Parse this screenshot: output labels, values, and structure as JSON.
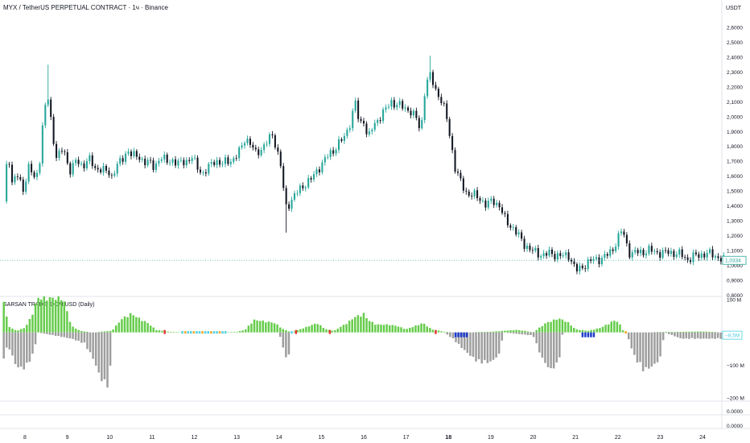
{
  "header": {
    "title": "MYX / TetherUS PERPETUAL CONTRACT · 1ч · Binance",
    "currency": "USDT"
  },
  "indicator": {
    "title": "SARSAN TRADE: DOM USD (Daily)"
  },
  "colors": {
    "up": "#26a69a",
    "down": "#131722",
    "dom_pos": "#66cc4c",
    "dom_neg": "#9e9e9e",
    "dom_orange": "#f6a623",
    "dom_cyan": "#4dd0e1",
    "dom_red": "#e53935",
    "dom_blue": "#1e3ccf"
  },
  "chart_data": [
    {
      "type": "candlestick",
      "title": "MYX / TetherUS PERPETUAL CONTRACT · 1ч · Binance",
      "y_unit": "USDT",
      "ylim": [
        0.78,
        2.66
      ],
      "y_ticks": [
        "2,6000",
        "2,5000",
        "2,4000",
        "2,3000",
        "2,2000",
        "2,1000",
        "2,0000",
        "1,9000",
        "1,8000",
        "1,7000",
        "1,6000",
        "1,5000",
        "1,4000",
        "1,3000",
        "1,2000",
        "1,1000",
        "1,0000",
        "0,9000",
        "0,8000"
      ],
      "last_price_label": "1,0334",
      "last_price": 1.0334,
      "x_ticks": [
        "8",
        "9",
        "10",
        "11",
        "12",
        "13",
        "14",
        "15",
        "16",
        "17",
        "18",
        "19",
        "20",
        "21",
        "22",
        "23",
        "24"
      ],
      "x_ticks_bold": [
        "18"
      ],
      "close_path": [
        [
          7.5,
          1.43
        ],
        [
          7.6,
          1.78
        ],
        [
          7.7,
          1.55
        ],
        [
          7.8,
          1.62
        ],
        [
          7.95,
          1.5
        ],
        [
          8.1,
          1.68
        ],
        [
          8.25,
          1.55
        ],
        [
          8.35,
          1.72
        ],
        [
          8.45,
          2.05
        ],
        [
          8.55,
          2.12
        ],
        [
          8.65,
          1.88
        ],
        [
          8.75,
          1.73
        ],
        [
          8.9,
          1.78
        ],
        [
          9.05,
          1.64
        ],
        [
          9.2,
          1.7
        ],
        [
          9.35,
          1.66
        ],
        [
          9.5,
          1.73
        ],
        [
          9.65,
          1.64
        ],
        [
          9.8,
          1.66
        ],
        [
          9.95,
          1.62
        ],
        [
          10.05,
          1.59
        ],
        [
          10.15,
          1.68
        ],
        [
          10.3,
          1.7
        ],
        [
          10.45,
          1.78
        ],
        [
          10.6,
          1.73
        ],
        [
          10.75,
          1.71
        ],
        [
          10.9,
          1.7
        ],
        [
          11.05,
          1.65
        ],
        [
          11.2,
          1.74
        ],
        [
          11.35,
          1.69
        ],
        [
          11.5,
          1.71
        ],
        [
          11.65,
          1.68
        ],
        [
          11.8,
          1.7
        ],
        [
          11.95,
          1.73
        ],
        [
          12.05,
          1.66
        ],
        [
          12.2,
          1.62
        ],
        [
          12.35,
          1.66
        ],
        [
          12.5,
          1.71
        ],
        [
          12.65,
          1.68
        ],
        [
          12.8,
          1.7
        ],
        [
          12.95,
          1.72
        ],
        [
          13.1,
          1.78
        ],
        [
          13.2,
          1.86
        ],
        [
          13.3,
          1.83
        ],
        [
          13.45,
          1.75
        ],
        [
          13.6,
          1.79
        ],
        [
          13.75,
          1.84
        ],
        [
          13.85,
          1.88
        ],
        [
          13.95,
          1.78
        ],
        [
          14.05,
          1.66
        ],
        [
          14.15,
          1.38
        ],
        [
          14.25,
          1.42
        ],
        [
          14.35,
          1.47
        ],
        [
          14.5,
          1.51
        ],
        [
          14.65,
          1.56
        ],
        [
          14.8,
          1.59
        ],
        [
          14.95,
          1.66
        ],
        [
          15.1,
          1.72
        ],
        [
          15.25,
          1.76
        ],
        [
          15.4,
          1.82
        ],
        [
          15.55,
          1.86
        ],
        [
          15.7,
          1.98
        ],
        [
          15.8,
          2.1
        ],
        [
          15.9,
          1.94
        ],
        [
          16.0,
          1.98
        ],
        [
          16.1,
          1.85
        ],
        [
          16.2,
          1.92
        ],
        [
          16.35,
          1.99
        ],
        [
          16.5,
          2.04
        ],
        [
          16.65,
          2.1
        ],
        [
          16.8,
          2.08
        ],
        [
          16.95,
          2.06
        ],
        [
          17.1,
          2.04
        ],
        [
          17.25,
          1.98
        ],
        [
          17.35,
          1.9
        ],
        [
          17.45,
          2.2
        ],
        [
          17.55,
          2.28
        ],
        [
          17.65,
          2.22
        ],
        [
          17.75,
          2.15
        ],
        [
          17.85,
          2.1
        ],
        [
          17.95,
          2.0
        ],
        [
          18.05,
          1.85
        ],
        [
          18.15,
          1.66
        ],
        [
          18.3,
          1.55
        ],
        [
          18.45,
          1.48
        ],
        [
          18.6,
          1.47
        ],
        [
          18.75,
          1.45
        ],
        [
          18.9,
          1.4
        ],
        [
          19.05,
          1.44
        ],
        [
          19.2,
          1.4
        ],
        [
          19.35,
          1.3
        ],
        [
          19.5,
          1.26
        ],
        [
          19.65,
          1.2
        ],
        [
          19.8,
          1.14
        ],
        [
          19.95,
          1.1
        ],
        [
          20.1,
          1.08
        ],
        [
          20.25,
          1.07
        ],
        [
          20.4,
          1.08
        ],
        [
          20.55,
          1.07
        ],
        [
          20.7,
          1.06
        ],
        [
          20.85,
          1.07
        ],
        [
          20.95,
          1.0
        ],
        [
          21.05,
          0.96
        ],
        [
          21.2,
          1.0
        ],
        [
          21.35,
          1.03
        ],
        [
          21.5,
          1.04
        ],
        [
          21.65,
          1.05
        ],
        [
          21.8,
          1.08
        ],
        [
          21.9,
          1.12
        ],
        [
          22.0,
          1.18
        ],
        [
          22.1,
          1.24
        ],
        [
          22.2,
          1.15
        ],
        [
          22.3,
          1.07
        ],
        [
          22.45,
          1.09
        ],
        [
          22.6,
          1.09
        ],
        [
          22.75,
          1.1
        ],
        [
          22.9,
          1.09
        ],
        [
          23.05,
          1.08
        ],
        [
          23.2,
          1.09
        ],
        [
          23.35,
          1.08
        ],
        [
          23.5,
          1.07
        ],
        [
          23.65,
          1.04
        ],
        [
          23.8,
          1.06
        ],
        [
          23.95,
          1.07
        ],
        [
          24.1,
          1.08
        ],
        [
          24.25,
          1.07
        ],
        [
          24.4,
          1.05
        ],
        [
          24.5,
          1.0334
        ]
      ],
      "wick_extremes": [
        {
          "x": 8.55,
          "high": 2.35
        },
        {
          "x": 17.55,
          "high": 2.41
        },
        {
          "x": 14.15,
          "low": 1.22
        },
        {
          "x": 21.05,
          "low": 0.94
        }
      ]
    },
    {
      "type": "bar",
      "title": "SARSAN TRADE: DOM USD (Daily)",
      "y_unit": "USD",
      "ylim": [
        -210,
        110
      ],
      "y_ticks": [
        "100 M",
        "−100 M",
        "−200 M"
      ],
      "last_value_label": "−8,5M",
      "last_value": -8.5,
      "lower_axis_labels": [
        "0.0000",
        "0.0000"
      ],
      "pos_path": [
        [
          7.5,
          110
        ],
        [
          7.6,
          20
        ],
        [
          7.8,
          5
        ],
        [
          8.0,
          15
        ],
        [
          8.15,
          50
        ],
        [
          8.3,
          110
        ],
        [
          8.55,
          110
        ],
        [
          8.9,
          110
        ],
        [
          9.1,
          20
        ],
        [
          9.3,
          5
        ],
        [
          9.6,
          0
        ],
        [
          10.05,
          5
        ],
        [
          10.3,
          45
        ],
        [
          10.5,
          60
        ],
        [
          10.7,
          45
        ],
        [
          10.9,
          30
        ],
        [
          11.1,
          8
        ],
        [
          11.4,
          2
        ],
        [
          12.0,
          0
        ],
        [
          12.5,
          0
        ],
        [
          13.0,
          2
        ],
        [
          13.2,
          8
        ],
        [
          13.4,
          40
        ],
        [
          13.7,
          35
        ],
        [
          13.9,
          30
        ],
        [
          14.1,
          10
        ],
        [
          14.3,
          0
        ],
        [
          14.6,
          15
        ],
        [
          14.9,
          30
        ],
        [
          15.1,
          10
        ],
        [
          15.3,
          5
        ],
        [
          15.6,
          30
        ],
        [
          15.8,
          50
        ],
        [
          16.0,
          60
        ],
        [
          16.1,
          40
        ],
        [
          16.3,
          25
        ],
        [
          16.6,
          25
        ],
        [
          16.8,
          20
        ],
        [
          17.0,
          10
        ],
        [
          17.4,
          30
        ],
        [
          17.6,
          10
        ],
        [
          17.9,
          2
        ],
        [
          18.2,
          0
        ],
        [
          19.0,
          2
        ],
        [
          19.3,
          5
        ],
        [
          19.6,
          8
        ],
        [
          19.8,
          5
        ],
        [
          20.0,
          0
        ],
        [
          20.3,
          30
        ],
        [
          20.6,
          45
        ],
        [
          20.8,
          35
        ],
        [
          21.0,
          10
        ],
        [
          21.3,
          5
        ],
        [
          21.6,
          15
        ],
        [
          21.8,
          30
        ],
        [
          21.95,
          40
        ],
        [
          22.05,
          25
        ],
        [
          22.15,
          0
        ],
        [
          23.5,
          2
        ],
        [
          24.0,
          3
        ],
        [
          24.5,
          0
        ]
      ],
      "neg_path": [
        [
          7.5,
          -80
        ],
        [
          7.6,
          -40
        ],
        [
          7.8,
          -110
        ],
        [
          8.0,
          -115
        ],
        [
          8.2,
          -70
        ],
        [
          8.3,
          0
        ],
        [
          9.1,
          -20
        ],
        [
          9.4,
          -35
        ],
        [
          9.6,
          -80
        ],
        [
          9.8,
          -150
        ],
        [
          10.0,
          -175
        ],
        [
          10.05,
          0
        ],
        [
          11.0,
          0
        ],
        [
          14.0,
          0
        ],
        [
          14.2,
          -100
        ],
        [
          14.3,
          0
        ],
        [
          17.9,
          0
        ],
        [
          18.1,
          -20
        ],
        [
          18.4,
          -60
        ],
        [
          18.7,
          -95
        ],
        [
          19.0,
          -95
        ],
        [
          19.2,
          -70
        ],
        [
          19.3,
          0
        ],
        [
          20.0,
          -10
        ],
        [
          20.2,
          -80
        ],
        [
          20.4,
          -120
        ],
        [
          20.6,
          -100
        ],
        [
          20.7,
          0
        ],
        [
          22.2,
          0
        ],
        [
          22.4,
          -80
        ],
        [
          22.6,
          -120
        ],
        [
          22.8,
          -110
        ],
        [
          23.0,
          -85
        ],
        [
          23.1,
          0
        ],
        [
          23.5,
          -20
        ],
        [
          24.0,
          -20
        ],
        [
          24.5,
          -20
        ]
      ],
      "blue_spots": [
        18.3,
        21.3
      ],
      "red_spots": [
        11.3,
        14.4,
        15.2,
        17.7
      ]
    }
  ]
}
